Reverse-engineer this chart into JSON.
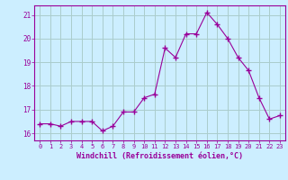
{
  "x": [
    0,
    1,
    2,
    3,
    4,
    5,
    6,
    7,
    8,
    9,
    10,
    11,
    12,
    13,
    14,
    15,
    16,
    17,
    18,
    19,
    20,
    21,
    22,
    23
  ],
  "y": [
    16.4,
    16.4,
    16.3,
    16.5,
    16.5,
    16.5,
    16.1,
    16.3,
    16.9,
    16.9,
    17.5,
    17.65,
    19.6,
    19.2,
    20.2,
    20.2,
    21.1,
    20.6,
    20.0,
    19.2,
    18.65,
    17.5,
    16.6,
    16.75
  ],
  "line_color": "#990099",
  "marker": "+",
  "marker_size": 4,
  "bg_color": "#cceeff",
  "grid_color": "#aacccc",
  "xlabel": "Windchill (Refroidissement éolien,°C)",
  "xlabel_color": "#990099",
  "tick_color": "#990099",
  "spine_color": "#990099",
  "ylim": [
    15.7,
    21.4
  ],
  "xlim": [
    -0.5,
    23.5
  ],
  "yticks": [
    16,
    17,
    18,
    19,
    20,
    21
  ],
  "xticks": [
    0,
    1,
    2,
    3,
    4,
    5,
    6,
    7,
    8,
    9,
    10,
    11,
    12,
    13,
    14,
    15,
    16,
    17,
    18,
    19,
    20,
    21,
    22,
    23
  ]
}
